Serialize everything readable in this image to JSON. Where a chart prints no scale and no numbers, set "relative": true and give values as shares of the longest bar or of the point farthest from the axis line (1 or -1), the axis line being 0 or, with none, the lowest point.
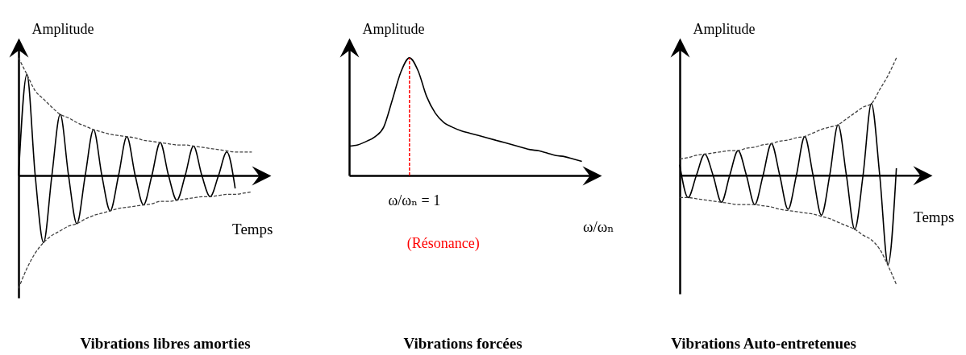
{
  "chart_data": [
    {
      "type": "line",
      "title": "Vibrations libres amorties",
      "xlabel": "Temps",
      "ylabel": "Amplitude",
      "relative": true,
      "categories": [
        null,
        null,
        null,
        null,
        null,
        null,
        null,
        null,
        null,
        null,
        null,
        null,
        null,
        null,
        null,
        null,
        null,
        null,
        null,
        null,
        null,
        null,
        null,
        null,
        null,
        null,
        null,
        null,
        null,
        null,
        null
      ],
      "series": [
        {
          "color": "#000000",
          "values": [
            0,
            0.86,
            0,
            -0.57,
            0,
            0.52,
            0,
            -0.41,
            0,
            0.39,
            0,
            -0.3,
            0,
            0.33,
            0,
            -0.25,
            0,
            0.28,
            0,
            -0.21,
            0,
            0.25,
            0,
            -0.18,
            0,
            0.2,
            -0.11,
            null,
            null,
            null,
            null
          ]
        },
        {
          "color": "#404040",
          "line_style": "dashed",
          "values": [
            1.0,
            0.86,
            0.72,
            0.65,
            0.58,
            0.52,
            0.49,
            0.45,
            0.42,
            0.39,
            0.37,
            0.35,
            0.34,
            0.33,
            0.32,
            0.3,
            0.29,
            0.28,
            0.27,
            0.26,
            0.26,
            0.25,
            0.24,
            0.23,
            0.22,
            0.21,
            0.2,
            0.2,
            0.2,
            null,
            null
          ]
        },
        {
          "color": "#404040",
          "line_style": "dashed",
          "values": [
            -0.96,
            -0.79,
            -0.66,
            -0.57,
            -0.51,
            -0.47,
            -0.43,
            -0.41,
            -0.37,
            -0.34,
            -0.32,
            -0.3,
            -0.28,
            -0.27,
            -0.26,
            -0.25,
            -0.24,
            -0.22,
            -0.22,
            -0.21,
            -0.2,
            -0.19,
            -0.18,
            -0.18,
            -0.17,
            -0.16,
            -0.16,
            -0.15,
            -0.14,
            null,
            null
          ]
        }
      ]
    },
    {
      "type": "line",
      "title": "Vibrations forcées",
      "xlabel": "ω/ωₙ",
      "ylabel": "Amplitude",
      "relative": true,
      "categories": [
        null,
        null,
        null,
        null,
        null,
        null,
        null,
        null,
        null,
        null,
        null,
        null,
        null,
        null,
        null,
        null,
        null,
        null,
        null,
        null,
        null,
        null,
        null,
        null,
        null,
        null,
        null,
        null,
        null,
        null
      ],
      "series": [
        {
          "color": "#000000",
          "values": [
            0.25,
            0.26,
            0.29,
            0.33,
            0.41,
            0.64,
            0.88,
            1.0,
            0.89,
            0.67,
            0.53,
            0.45,
            0.41,
            0.38,
            0.36,
            0.34,
            0.32,
            0.3,
            0.28,
            0.26,
            0.24,
            0.22,
            0.21,
            0.19,
            0.17,
            0.16,
            0.14,
            0.12,
            null,
            null
          ]
        }
      ],
      "ref_lines": [
        {
          "axis": "x",
          "label": "(Résonance)",
          "color": "#ff0000",
          "line_style": "dashed"
        }
      ],
      "annotations": [
        "ω/ωₙ = 1"
      ]
    },
    {
      "type": "line",
      "title": "Vibrations Auto-entretenues",
      "xlabel": "Temps",
      "ylabel": "Amplitude",
      "relative": true,
      "categories": [
        null,
        null,
        null,
        null,
        null,
        null,
        null,
        null,
        null,
        null,
        null,
        null,
        null,
        null,
        null,
        null,
        null,
        null,
        null,
        null,
        null,
        null,
        null,
        null,
        null,
        null,
        null,
        null,
        null,
        null,
        null
      ],
      "series": [
        {
          "color": "#000000",
          "values": [
            0.09,
            -0.19,
            0,
            0.18,
            0,
            -0.23,
            0,
            0.21,
            0,
            -0.25,
            0,
            0.27,
            0,
            -0.29,
            0,
            0.33,
            0,
            -0.34,
            0,
            0.43,
            0,
            -0.46,
            0,
            0.61,
            0,
            -0.76,
            0.06,
            null,
            null,
            null,
            null
          ]
        },
        {
          "color": "#404040",
          "line_style": "dashed",
          "values": [
            0.14,
            0.15,
            0.17,
            0.18,
            0.19,
            0.2,
            0.21,
            0.21,
            0.23,
            0.24,
            0.26,
            0.27,
            0.29,
            0.3,
            0.32,
            0.33,
            0.36,
            0.39,
            0.41,
            0.43,
            0.48,
            0.53,
            0.58,
            0.61,
            0.73,
            0.85,
            1.0,
            null,
            null,
            null,
            null
          ]
        },
        {
          "color": "#404040",
          "line_style": "dashed",
          "values": [
            -0.19,
            -0.19,
            -0.2,
            -0.21,
            -0.22,
            -0.23,
            -0.24,
            -0.25,
            -0.25,
            -0.25,
            -0.26,
            -0.27,
            -0.29,
            -0.3,
            -0.31,
            -0.32,
            -0.33,
            -0.35,
            -0.37,
            -0.4,
            -0.43,
            -0.46,
            -0.51,
            -0.55,
            -0.63,
            -0.77,
            -0.93,
            null,
            null,
            null,
            null
          ]
        }
      ]
    }
  ]
}
